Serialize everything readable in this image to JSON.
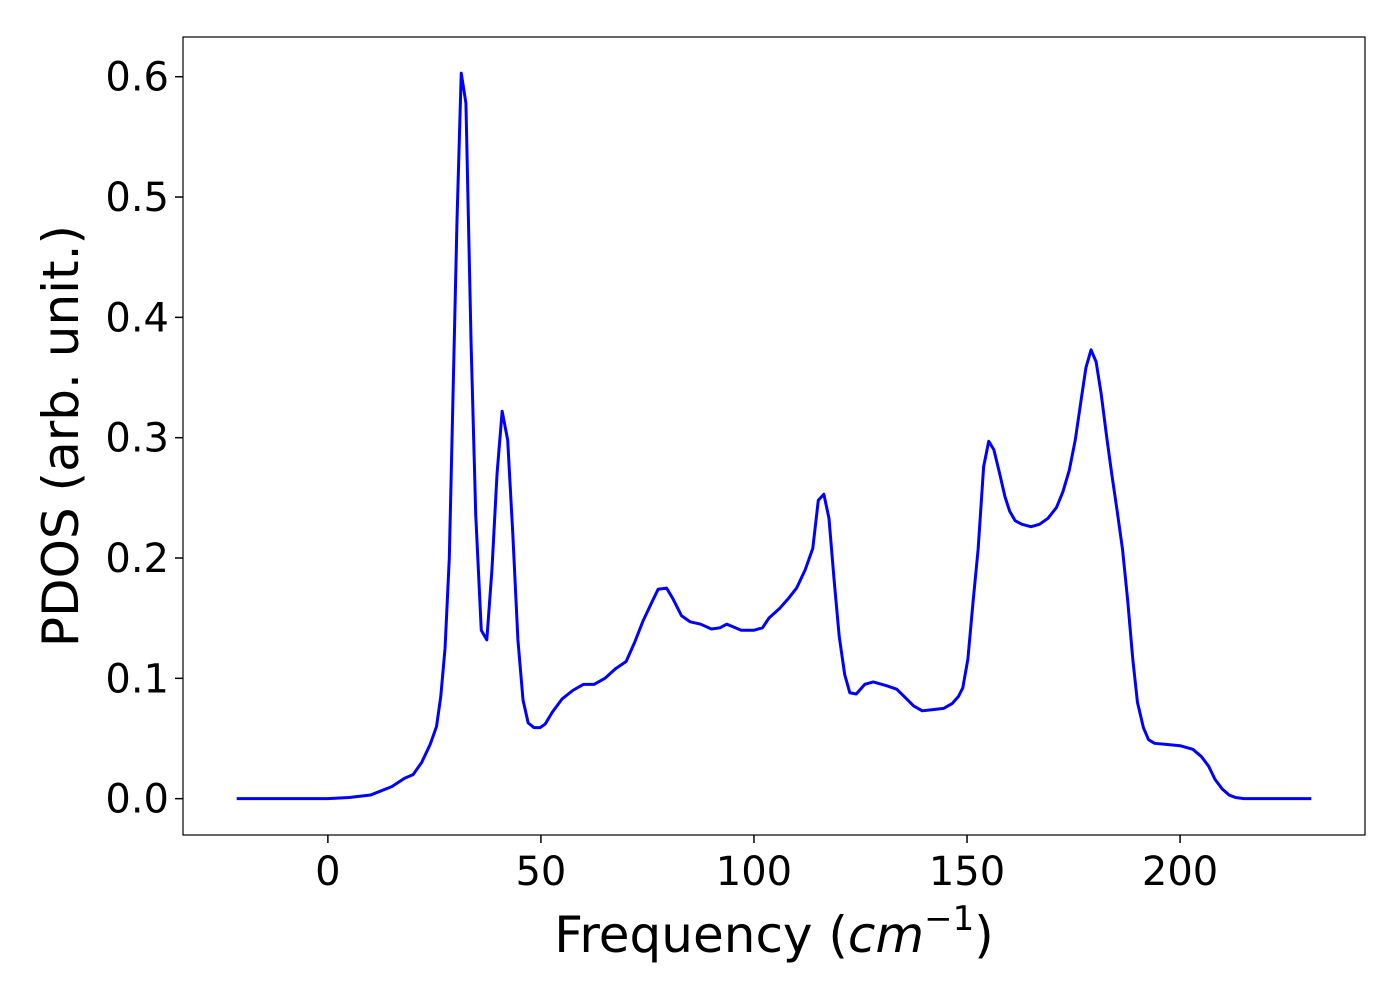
{
  "chart_data": {
    "type": "line",
    "xlabel": [
      "Frequency (",
      "cm",
      "−1",
      ")"
    ],
    "ylabel": "PDOS (arb. unit.)",
    "xlim": [
      -34,
      243.4
    ],
    "ylim": [
      -0.0302,
      0.633
    ],
    "xticks": [
      0,
      50,
      100,
      150,
      200
    ],
    "yticks": [
      {
        "value": 0,
        "label": "0.0"
      },
      0.1,
      0.2,
      0.3,
      0.4,
      0.5,
      0.6
    ],
    "grid": false,
    "series": [
      {
        "color": "#0000ff",
        "x": [
          -21.4,
          0,
          5,
          10,
          15,
          18,
          20,
          22,
          24,
          25.5,
          26.5,
          27.5,
          28.5,
          30.3,
          31.3,
          32.4,
          33.6,
          34.7,
          36,
          37.3,
          38.5,
          39.7,
          40.9,
          42.2,
          43.4,
          44.6,
          45.8,
          47,
          48.4,
          49.8,
          51,
          52.7,
          55,
          57.5,
          60,
          62.5,
          65,
          67.5,
          70,
          72,
          74,
          76,
          77.5,
          79.5,
          81,
          83,
          85,
          87.5,
          90,
          92,
          93.6,
          95,
          97,
          100,
          102,
          103.5,
          106,
          108,
          110,
          112,
          113.8,
          115.1,
          116.4,
          117.6,
          118.8,
          120,
          121.3,
          122.5,
          124,
          126,
          128,
          131,
          133.5,
          135.5,
          137.5,
          139.5,
          142,
          144.5,
          146.5,
          148,
          149,
          150.2,
          151.4,
          152.6,
          153.9,
          155.1,
          156.3,
          157.6,
          158.9,
          160,
          161.3,
          162.9,
          165,
          167,
          169,
          171,
          172.5,
          174,
          175.4,
          176.8,
          177.9,
          179.1,
          180.3,
          181.5,
          182.8,
          184,
          185.2,
          186.5,
          187.7,
          188.9,
          190,
          191.4,
          192.6,
          194,
          197,
          200,
          203,
          205,
          206.7,
          208.2,
          209.9,
          211.5,
          213,
          215,
          230.8
        ],
        "values": [
          0,
          0,
          0.001,
          0.003,
          0.01,
          0.017,
          0.02,
          0.03,
          0.045,
          0.06,
          0.085,
          0.125,
          0.2,
          0.48,
          0.603,
          0.578,
          0.38,
          0.236,
          0.14,
          0.132,
          0.19,
          0.27,
          0.322,
          0.298,
          0.22,
          0.132,
          0.082,
          0.063,
          0.059,
          0.059,
          0.062,
          0.072,
          0.083,
          0.09,
          0.095,
          0.095,
          0.1,
          0.108,
          0.114,
          0.13,
          0.148,
          0.163,
          0.174,
          0.175,
          0.166,
          0.152,
          0.147,
          0.145,
          0.141,
          0.142,
          0.145,
          0.143,
          0.14,
          0.14,
          0.142,
          0.15,
          0.158,
          0.166,
          0.175,
          0.19,
          0.208,
          0.248,
          0.253,
          0.233,
          0.182,
          0.135,
          0.103,
          0.088,
          0.087,
          0.095,
          0.097,
          0.094,
          0.091,
          0.084,
          0.077,
          0.073,
          0.074,
          0.075,
          0.079,
          0.085,
          0.092,
          0.116,
          0.163,
          0.207,
          0.276,
          0.297,
          0.29,
          0.271,
          0.251,
          0.239,
          0.231,
          0.228,
          0.226,
          0.228,
          0.233,
          0.242,
          0.255,
          0.273,
          0.298,
          0.332,
          0.358,
          0.373,
          0.363,
          0.336,
          0.3,
          0.269,
          0.24,
          0.207,
          0.165,
          0.116,
          0.08,
          0.059,
          0.049,
          0.046,
          0.045,
          0.044,
          0.041,
          0.035,
          0.027,
          0.016,
          0.008,
          0.003,
          0.001,
          0,
          0
        ]
      }
    ]
  }
}
